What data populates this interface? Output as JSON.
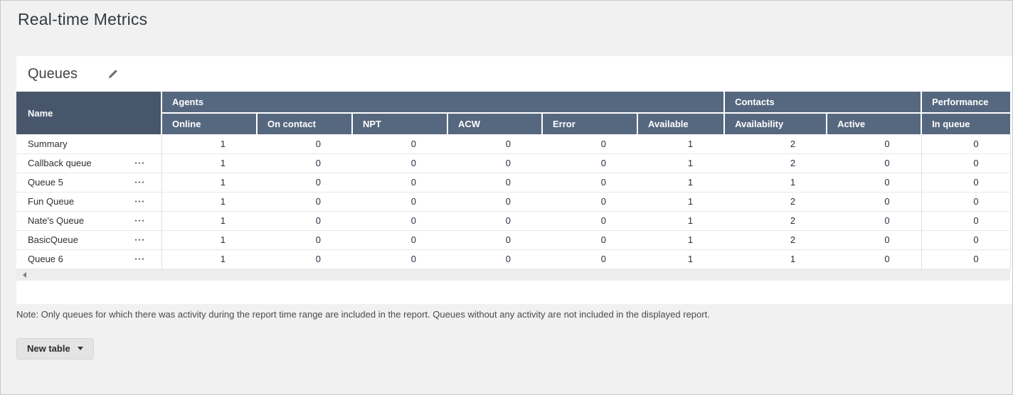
{
  "page": {
    "title": "Real-time Metrics",
    "note": "Note: Only queues for which there was activity during the report time range are included in the report. Queues without any activity are not included in the displayed report."
  },
  "card": {
    "title": "Queues",
    "edit_icon": "pencil-icon"
  },
  "table": {
    "name_header": "Name",
    "groups": [
      {
        "label": "Agents",
        "columns": [
          "Online",
          "On contact",
          "NPT",
          "ACW",
          "Error",
          "Available"
        ]
      },
      {
        "label": "Contacts",
        "columns": [
          "Availability",
          "Active"
        ]
      },
      {
        "label": "Performance",
        "columns": [
          "In queue"
        ]
      }
    ],
    "rows": [
      {
        "name": "Summary",
        "has_menu": false,
        "values": [
          1,
          0,
          0,
          0,
          0,
          1,
          2,
          0,
          0
        ]
      },
      {
        "name": "Callback queue",
        "has_menu": true,
        "values": [
          1,
          0,
          0,
          0,
          0,
          1,
          2,
          0,
          0
        ]
      },
      {
        "name": "Queue 5",
        "has_menu": true,
        "values": [
          1,
          0,
          0,
          0,
          0,
          1,
          1,
          0,
          0
        ]
      },
      {
        "name": "Fun Queue",
        "has_menu": true,
        "values": [
          1,
          0,
          0,
          0,
          0,
          1,
          2,
          0,
          0
        ]
      },
      {
        "name": "Nate's Queue",
        "has_menu": true,
        "values": [
          1,
          0,
          0,
          0,
          0,
          1,
          2,
          0,
          0
        ]
      },
      {
        "name": "BasicQueue",
        "has_menu": true,
        "values": [
          1,
          0,
          0,
          0,
          0,
          1,
          2,
          0,
          0
        ]
      },
      {
        "name": "Queue 6",
        "has_menu": true,
        "values": [
          1,
          0,
          0,
          0,
          0,
          1,
          1,
          0,
          0
        ]
      }
    ],
    "row_menu_icon": "ellipsis-icon",
    "scrollbar": {
      "left_arrow_icon": "scroll-left-arrow-icon"
    }
  },
  "footer": {
    "new_table_label": "New table",
    "caret_icon": "caret-down-icon"
  },
  "colors": {
    "header_name_bg": "#47566b",
    "header_group_bg": "#56687f",
    "header_text": "#ffffff",
    "page_background": "#f1f1f1",
    "card_background": "#ffffff",
    "row_divider": "#e8e8e8",
    "button_background": "#e4e4e4"
  }
}
